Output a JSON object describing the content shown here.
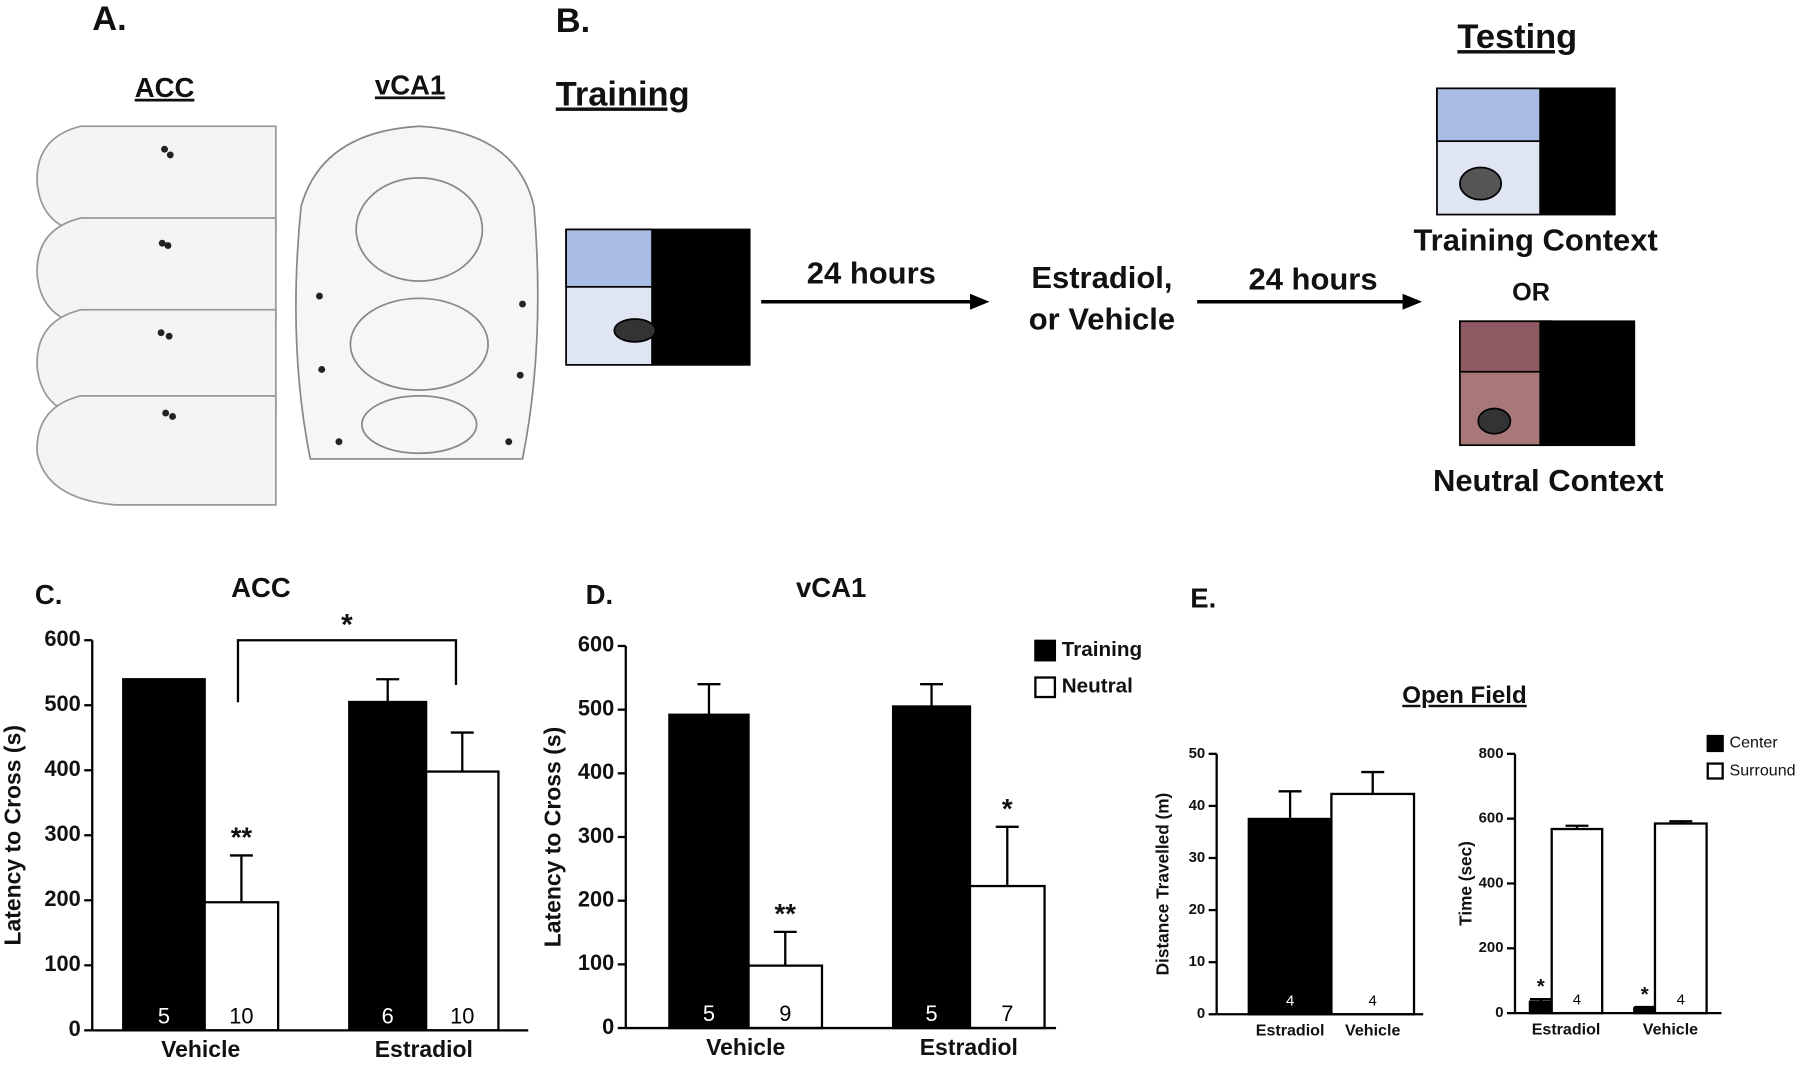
{
  "panel_a": {
    "label": "A.",
    "acc_title": "ACC",
    "vca1_title": "vCA1"
  },
  "panel_b": {
    "label": "B.",
    "training": "Training",
    "testing": "Testing",
    "delay_1": "24 hours",
    "treatment_line1": "Estradiol,",
    "treatment_line2": "or Vehicle",
    "delay_2": "24 hours",
    "training_context": "Training Context",
    "or": "OR",
    "neutral_context": "Neutral Context"
  },
  "panel_e": {
    "label": "E.",
    "title": "Open Field"
  },
  "chart_data": [
    {
      "type": "bar",
      "panel_label": "C.",
      "title": "ACC",
      "ylabel": "Latency to Cross (s)",
      "categories": [
        "Vehicle",
        "Estradiol"
      ],
      "series": [
        {
          "color": "#000000",
          "values": [
            540,
            505
          ],
          "errors": [
            null,
            35
          ],
          "n_labels": [
            5,
            6
          ]
        },
        {
          "color": "#ffffff",
          "values": [
            197,
            398
          ],
          "errors": [
            72,
            60
          ],
          "n_labels": [
            10,
            10
          ],
          "annotations": [
            "**",
            null
          ]
        }
      ],
      "ylim": [
        0,
        600
      ],
      "yticks": [
        0,
        100,
        200,
        300,
        400,
        500,
        600
      ],
      "bracket_label": "*"
    },
    {
      "type": "bar",
      "panel_label": "D.",
      "title": "vCA1",
      "ylabel": "Latency to Cross (s)",
      "categories": [
        "Vehicle",
        "Estradiol"
      ],
      "series": [
        {
          "name": "Training",
          "color": "#000000",
          "values": [
            492,
            505
          ],
          "errors": [
            48,
            35
          ],
          "n_labels": [
            5,
            5
          ]
        },
        {
          "name": "Neutral",
          "color": "#ffffff",
          "values": [
            98,
            223
          ],
          "errors": [
            53,
            93
          ],
          "n_labels": [
            9,
            7
          ],
          "annotations": [
            "**",
            "*"
          ]
        }
      ],
      "ylim": [
        0,
        600
      ],
      "yticks": [
        0,
        100,
        200,
        300,
        400,
        500,
        600
      ],
      "legend": "top-right"
    },
    {
      "type": "bar",
      "ylabel": "Distance Travelled (m)",
      "categories": [
        "Estradiol",
        "Vehicle"
      ],
      "series": [
        {
          "color": "#000000",
          "values": [
            37.5,
            null
          ],
          "errors": [
            5.3,
            null
          ],
          "n_labels": [
            4,
            null
          ]
        },
        {
          "color": "#ffffff",
          "values": [
            null,
            42.3
          ],
          "errors": [
            null,
            4.2
          ],
          "n_labels": [
            null,
            4
          ]
        }
      ],
      "ylim": [
        0,
        50
      ],
      "yticks": [
        0,
        10,
        20,
        30,
        40,
        50
      ]
    },
    {
      "type": "bar",
      "ylabel": "Time (sec)",
      "categories": [
        "Estradiol",
        "Vehicle"
      ],
      "series": [
        {
          "name": "Center",
          "color": "#000000",
          "values": [
            35,
            15
          ],
          "errors": [
            8,
            4
          ],
          "annotations": [
            "*",
            "*"
          ]
        },
        {
          "name": "Surround",
          "color": "#ffffff",
          "values": [
            568,
            585
          ],
          "errors": [
            10,
            7
          ],
          "n_labels": [
            4,
            4
          ]
        }
      ],
      "ylim": [
        0,
        800
      ],
      "yticks": [
        0,
        200,
        400,
        600,
        800
      ],
      "legend": "top-right"
    }
  ]
}
